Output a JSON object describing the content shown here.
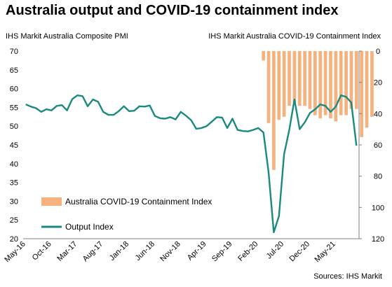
{
  "title": "Australia output and COVID-19 containment index",
  "source": "Sources: IHS Markit",
  "chart_data": {
    "type": "line+bar",
    "title": "Australia output and COVID-19 containment index",
    "left_axis_label": "IHS Markit Australia Composite PMI",
    "right_axis_label": "IHS Markit Australia COVID-19 Containment Index",
    "left_ylim": [
      20,
      70
    ],
    "right_ylim": [
      0,
      120
    ],
    "right_axis_inverted": true,
    "left_ticks": [
      20,
      25,
      30,
      35,
      40,
      45,
      50,
      55,
      60,
      65,
      70
    ],
    "right_ticks": [
      0,
      20,
      40,
      60,
      80,
      100,
      120
    ],
    "x_tick_labels": [
      "May-16",
      "Oct-16",
      "Mar-17",
      "Aug-17",
      "Jan-18",
      "Jun-18",
      "Nov-18",
      "Apr-19",
      "Sep-19",
      "Feb-20",
      "Jul-20",
      "Dec-20",
      "May-21"
    ],
    "x_start": "May-16",
    "legend": [
      {
        "name": "Australia COVID-19 Containment Index",
        "color": "#f5b27f",
        "kind": "bar"
      },
      {
        "name": "Output Index",
        "color": "#1b8a7e",
        "kind": "line"
      }
    ],
    "series": [
      {
        "name": "Output Index",
        "axis": "left",
        "values": [
          55.8,
          55.2,
          54.8,
          53.8,
          54.5,
          54.2,
          55.4,
          55.6,
          54.2,
          57.2,
          58.2,
          58.0,
          55.3,
          57.1,
          56.5,
          53.8,
          53.0,
          53.0,
          54.0,
          55.3,
          54.0,
          54.1,
          55.3,
          55.2,
          55.5,
          52.7,
          52.1,
          52.0,
          52.4,
          51.8,
          53.8,
          52.8,
          51.6,
          49.3,
          49.5,
          50.0,
          51.2,
          52.4,
          52.3,
          49.5,
          52.0,
          49.0,
          48.7,
          48.6,
          49.0,
          49.5,
          48.3,
          37.7,
          21.7,
          26.0,
          42.5,
          49.0,
          57.1,
          49.2,
          51.0,
          53.5,
          54.5,
          55.8,
          55.4,
          53.8,
          55.2,
          58.2,
          57.8,
          56.3,
          44.8
        ]
      },
      {
        "name": "Australia COVID-19 Containment Index",
        "axis": "right",
        "start_index": 45,
        "values": [
          0,
          6,
          46,
          76,
          44,
          42,
          35,
          33,
          35,
          35,
          37,
          41,
          43,
          41,
          43,
          45,
          41,
          41,
          37,
          37,
          55,
          49,
          42
        ]
      }
    ]
  }
}
